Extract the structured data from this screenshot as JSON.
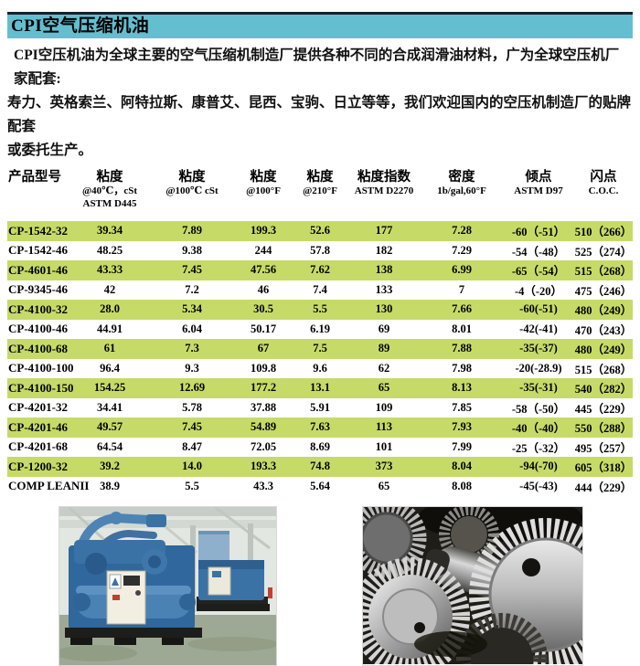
{
  "banner": {
    "title": "CPI空气压缩机油",
    "bg_color": "#63bed0",
    "top_border_color": "#15222d"
  },
  "intro": {
    "line1": "CPI空压机油为全球主要的空气压缩机制造厂提供各种不同的合成润滑油材料，广为全球空压机厂家配套:",
    "line2": "寿力、英格索兰、阿特拉斯、康普艾、昆西、宝驹、日立等等，我们欢迎国内的空压机制造厂的贴牌配套",
    "line3": "或委托生产。"
  },
  "table": {
    "highlight_row_color": "#c6da67",
    "columns": [
      {
        "label": "产品型号",
        "sub": []
      },
      {
        "label": "粘度",
        "sub": [
          "@40℃，cSt",
          "ASTM D445"
        ]
      },
      {
        "label": "粘度",
        "sub": [
          "@100℃ cSt"
        ]
      },
      {
        "label": "粘度",
        "sub": [
          "@100°F"
        ]
      },
      {
        "label": "粘度",
        "sub": [
          "@210°F"
        ]
      },
      {
        "label": "粘度指数",
        "sub": [
          "ASTM D2270"
        ]
      },
      {
        "label": "密度",
        "sub": [
          "1b/gal,60°F"
        ]
      },
      {
        "label": "倾点",
        "sub": [
          "ASTM D97"
        ]
      },
      {
        "label": "闪点",
        "sub": [
          "C.O.C."
        ]
      }
    ],
    "rows": [
      [
        "CP-1542-32",
        "39.34",
        "7.89",
        "199.3",
        "52.6",
        "177",
        "7.28",
        "-60（-51）",
        "510（266）"
      ],
      [
        "CP-1542-46",
        "48.25",
        "9.38",
        "244",
        "57.8",
        "182",
        "7.29",
        "-54（-48）",
        "525（274）"
      ],
      [
        "CP-4601-46",
        "43.33",
        "7.45",
        "47.56",
        "7.62",
        "138",
        "6.99",
        "-65（-54）",
        "515（268）"
      ],
      [
        "CP-9345-46",
        "42",
        "7.2",
        "46",
        "7.4",
        "133",
        "7",
        "-4（-20）",
        "475（246）"
      ],
      [
        "CP-4100-32",
        "28.0",
        "5.34",
        "30.5",
        "5.5",
        "130",
        "7.66",
        "-60(-51)",
        "480（249）"
      ],
      [
        "CP-4100-46",
        "44.91",
        "6.04",
        "50.17",
        "6.19",
        "69",
        "8.01",
        "-42(-41)",
        "470（243）"
      ],
      [
        "CP-4100-68",
        "61",
        "7.3",
        "67",
        "7.5",
        "89",
        "7.88",
        "-35(-37)",
        "480（249）"
      ],
      [
        "CP-4100-100",
        "96.4",
        "9.3",
        "109.8",
        "9.6",
        "62",
        "7.98",
        "-20(-28.9)",
        "515（268）"
      ],
      [
        "CP-4100-150",
        "154.25",
        "12.69",
        "177.2",
        "13.1",
        "65",
        "8.13",
        "-35(-31)",
        "540（282）"
      ],
      [
        "CP-4201-32",
        "34.41",
        "5.78",
        "37.88",
        "5.91",
        "109",
        "7.85",
        "-58（-50）",
        "445（229）"
      ],
      [
        "CP-4201-46",
        "49.57",
        "7.45",
        "54.89",
        "7.63",
        "113",
        "7.93",
        "-40（-40）",
        "550（288）"
      ],
      [
        "CP-4201-68",
        "64.54",
        "8.47",
        "72.05",
        "8.69",
        "101",
        "7.99",
        "-25（-32）",
        "495（257）"
      ],
      [
        "CP-1200-32",
        "39.2",
        "14.0",
        "193.3",
        "74.8",
        "373",
        "8.04",
        "-94(-70)",
        "605（318）"
      ],
      [
        "COMP LEANII",
        "38.9",
        "5.5",
        "43.3",
        "5.64",
        "65",
        "8.08",
        "-45(-43)",
        "444（229）"
      ]
    ]
  },
  "photos": {
    "left_description": "蓝色空气压缩机组车间照片",
    "right_description": "钢制齿轮特写照片"
  }
}
